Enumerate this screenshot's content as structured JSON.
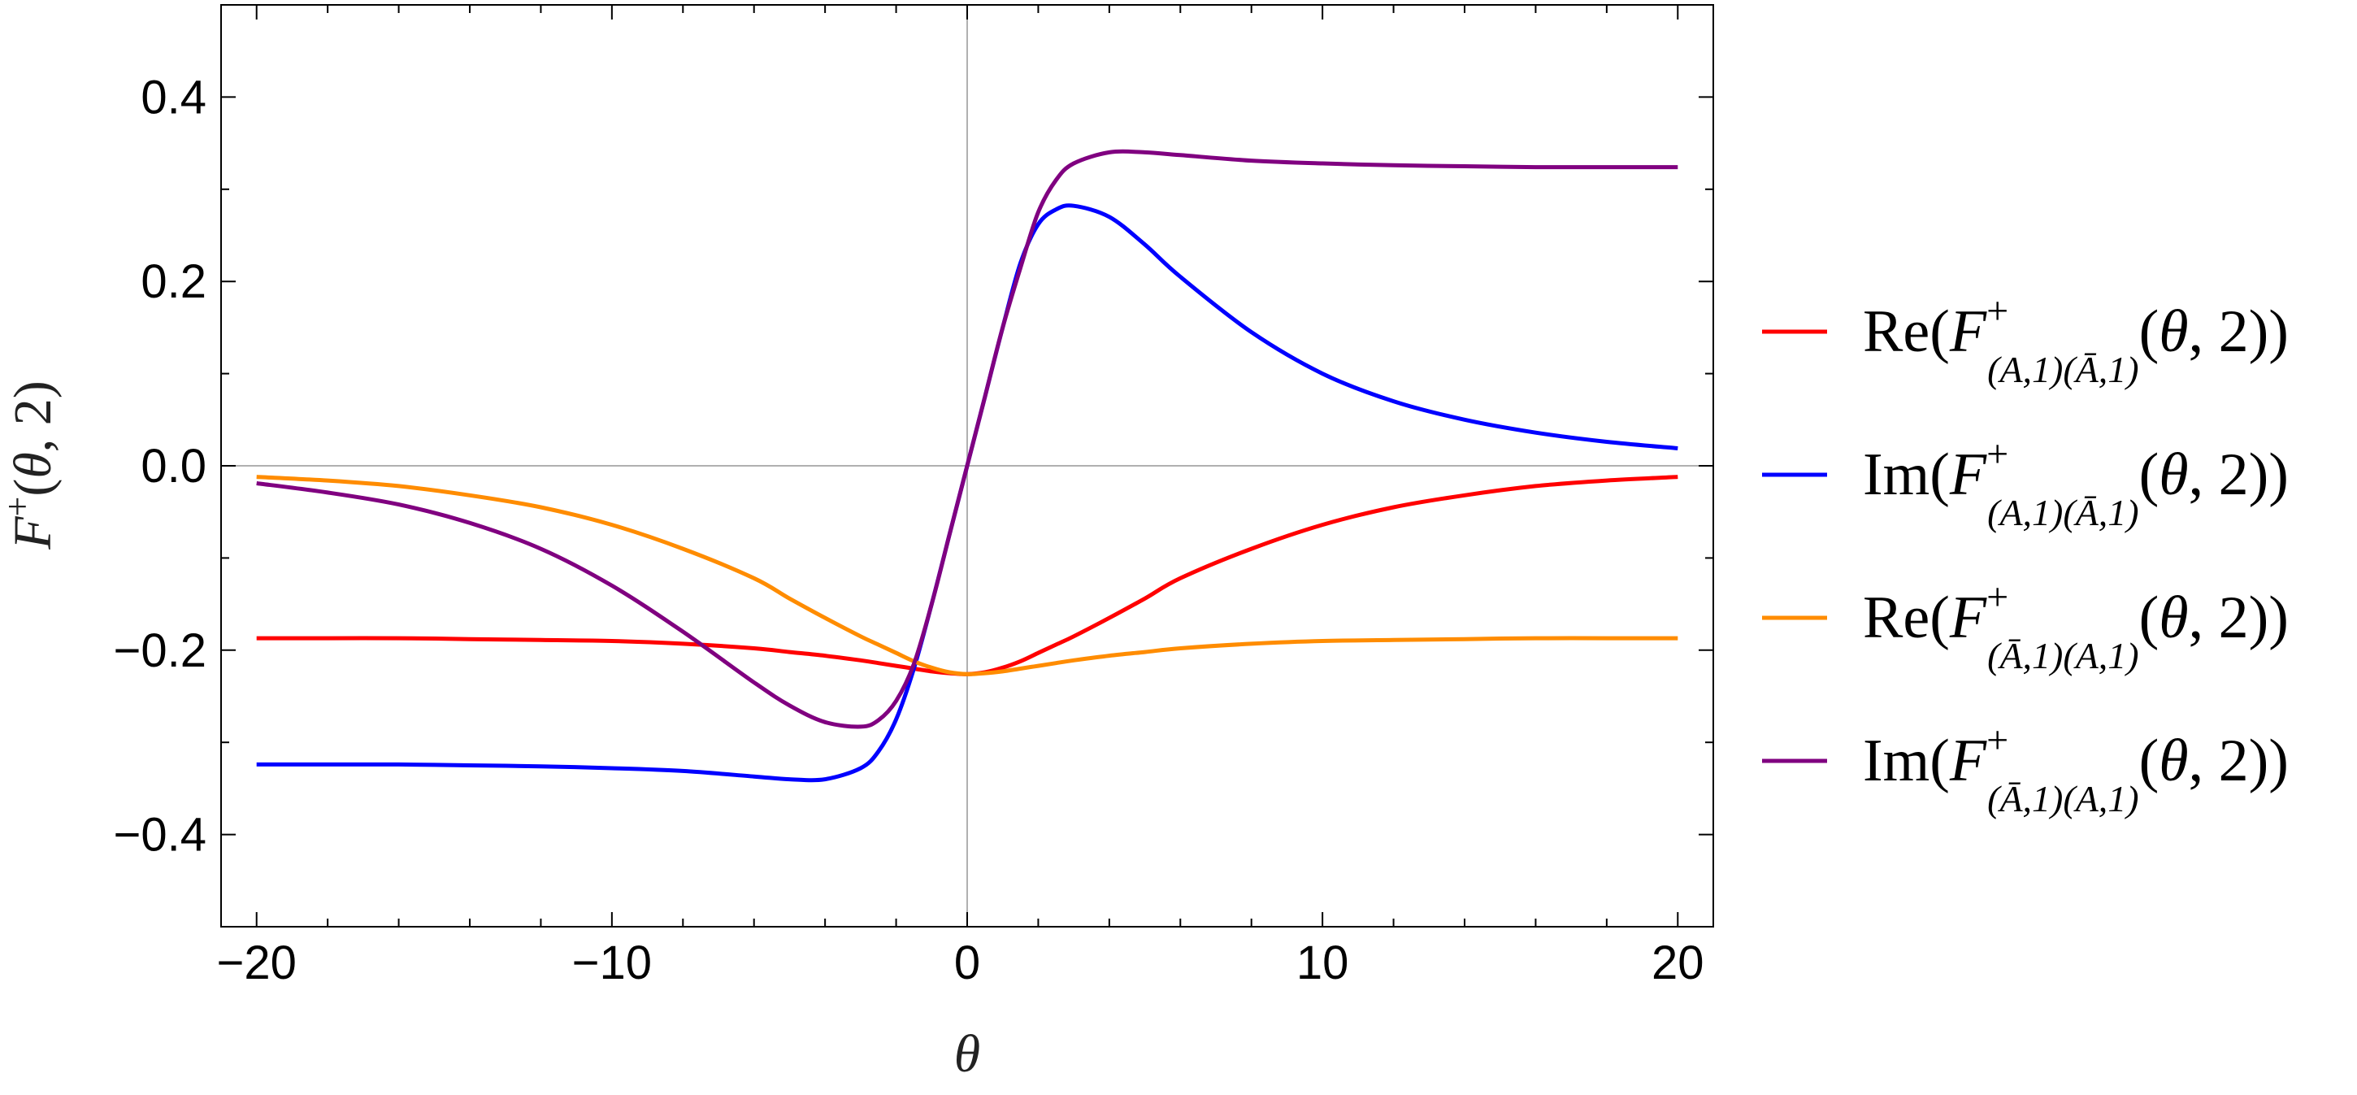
{
  "chart_data": {
    "type": "line",
    "xlabel": "θ",
    "ylabel": "F⁺(θ, 2)",
    "xlim": [
      -21,
      21
    ],
    "ylim": [
      -0.5,
      0.5
    ],
    "x_ticks": [
      -20,
      -10,
      0,
      10,
      20
    ],
    "x_tick_labels": [
      "−20",
      "−10",
      "0",
      "10",
      "20"
    ],
    "y_ticks": [
      -0.4,
      -0.2,
      0.0,
      0.2,
      0.4
    ],
    "y_tick_labels": [
      "−0.4",
      "−0.2",
      "0.0",
      "0.2",
      "0.4"
    ],
    "grid": false,
    "frame": true,
    "zero_lines": true,
    "legend_position": "right",
    "x": [
      -20,
      -18,
      -16,
      -14,
      -12,
      -10,
      -8,
      -6,
      -5,
      -4,
      -3,
      -2.5,
      -2,
      -1.5,
      -1,
      -0.5,
      0,
      0.5,
      1,
      1.5,
      2,
      2.5,
      3,
      4,
      5,
      6,
      8,
      10,
      12,
      14,
      16,
      18,
      20
    ],
    "series": [
      {
        "name": "Re(F⁺(A,1)(Ā,1)(θ, 2))",
        "color": "#ff0000",
        "values": [
          -0.187,
          -0.187,
          -0.187,
          -0.188,
          -0.189,
          -0.19,
          -0.193,
          -0.198,
          -0.202,
          -0.206,
          -0.211,
          -0.214,
          -0.217,
          -0.22,
          -0.223,
          -0.225,
          -0.226,
          -0.224,
          -0.219,
          -0.212,
          -0.203,
          -0.194,
          -0.185,
          -0.165,
          -0.144,
          -0.122,
          -0.09,
          -0.064,
          -0.045,
          -0.032,
          -0.022,
          -0.016,
          -0.012
        ]
      },
      {
        "name": "Im(F⁺(A,1)(Ā,1)(θ, 2))",
        "color": "#0000ff",
        "values": [
          -0.324,
          -0.324,
          -0.324,
          -0.325,
          -0.326,
          -0.328,
          -0.331,
          -0.337,
          -0.34,
          -0.34,
          -0.328,
          -0.31,
          -0.275,
          -0.22,
          -0.15,
          -0.075,
          0.0,
          0.075,
          0.15,
          0.22,
          0.262,
          0.278,
          0.282,
          0.27,
          0.24,
          0.205,
          0.145,
          0.1,
          0.07,
          0.05,
          0.036,
          0.026,
          0.019
        ]
      },
      {
        "name": "Re(F⁺(Ā,1)(A,1)(θ, 2))",
        "color": "#ff8c00",
        "values": [
          -0.012,
          -0.016,
          -0.022,
          -0.032,
          -0.045,
          -0.064,
          -0.09,
          -0.122,
          -0.144,
          -0.165,
          -0.185,
          -0.194,
          -0.203,
          -0.212,
          -0.219,
          -0.224,
          -0.226,
          -0.225,
          -0.223,
          -0.22,
          -0.217,
          -0.214,
          -0.211,
          -0.206,
          -0.202,
          -0.198,
          -0.193,
          -0.19,
          -0.189,
          -0.188,
          -0.187,
          -0.187,
          -0.187
        ]
      },
      {
        "name": "Im(F⁺(Ā,1)(A,1)(θ, 2))",
        "color": "#800080",
        "values": [
          -0.019,
          -0.029,
          -0.042,
          -0.062,
          -0.09,
          -0.13,
          -0.18,
          -0.235,
          -0.26,
          -0.278,
          -0.283,
          -0.276,
          -0.255,
          -0.215,
          -0.15,
          -0.075,
          0.0,
          0.075,
          0.15,
          0.215,
          0.275,
          0.31,
          0.328,
          0.34,
          0.34,
          0.337,
          0.331,
          0.328,
          0.326,
          0.325,
          0.324,
          0.324,
          0.324
        ]
      }
    ]
  }
}
